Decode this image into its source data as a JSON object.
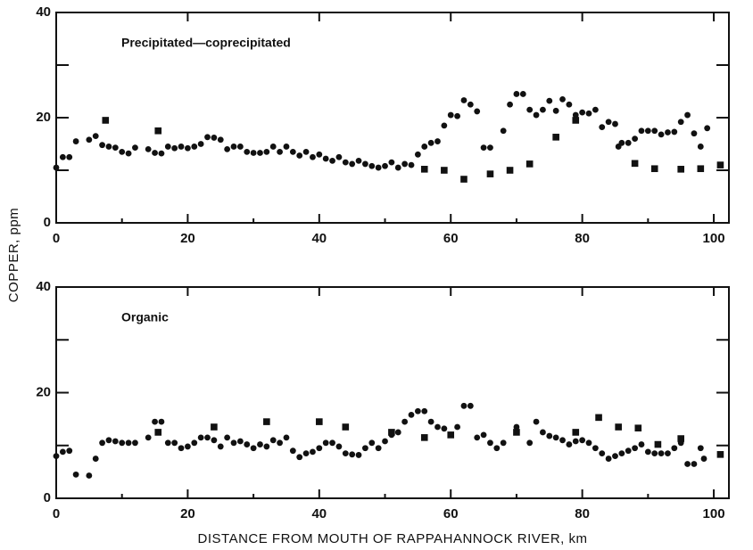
{
  "chart_data": [
    {
      "type": "scatter",
      "annotation": "Precipitated—coprecipitated",
      "ylabel": "COPPER, ppm",
      "xlim": [
        0,
        102.3
      ],
      "xticks": [
        0,
        20,
        40,
        60,
        80,
        100
      ],
      "xminor": [
        10,
        30,
        50,
        70,
        90
      ],
      "ylim": [
        0,
        40
      ],
      "yticks": [
        0,
        20,
        40
      ],
      "yminor": [
        10,
        30
      ],
      "series": [
        {
          "marker": "circle",
          "color": "#111",
          "x": [
            0,
            1,
            2,
            3,
            5,
            6,
            7,
            8,
            9,
            10,
            11,
            12,
            14,
            15,
            16,
            17,
            18,
            19,
            20,
            21,
            22,
            23,
            24,
            25,
            26,
            27,
            28,
            29,
            30,
            31,
            32,
            33,
            34,
            35,
            36,
            37,
            38,
            39,
            40,
            41,
            42,
            43,
            44,
            45,
            46,
            47,
            48,
            49,
            50,
            51,
            52,
            53,
            54,
            55,
            56,
            57,
            58,
            59,
            60,
            61,
            62,
            63,
            64,
            65,
            66,
            68,
            69,
            70,
            71,
            72,
            73,
            74,
            75,
            76,
            77,
            78,
            79,
            80,
            81,
            82,
            83,
            84,
            85,
            85.5,
            86,
            87,
            88,
            89,
            90,
            91,
            92,
            93,
            94,
            95,
            96,
            97,
            98,
            99
          ],
          "values": [
            10.5,
            12.5,
            12.5,
            15.5,
            15.8,
            16.5,
            14.8,
            14.5,
            14.3,
            13.5,
            13.2,
            14.3,
            14,
            13.3,
            13.2,
            14.5,
            14.2,
            14.5,
            14.2,
            14.5,
            15,
            16.3,
            16.2,
            15.8,
            14,
            14.5,
            14.5,
            13.5,
            13.3,
            13.3,
            13.5,
            14.5,
            13.5,
            14.5,
            13.5,
            12.8,
            13.5,
            12.5,
            13,
            12.2,
            11.8,
            12.5,
            11.5,
            11.2,
            11.8,
            11.2,
            10.8,
            10.5,
            10.8,
            11.5,
            10.5,
            11.2,
            11,
            13,
            14.5,
            15.2,
            15.5,
            18.5,
            20.5,
            20.3,
            23.3,
            22.5,
            21.2,
            14.3,
            14.3,
            17.5,
            22.5,
            24.5,
            24.5,
            21.5,
            20.5,
            21.5,
            23.2,
            21.3,
            23.5,
            22.5,
            20.5,
            21,
            20.8,
            21.5,
            18.2,
            19.2,
            18.8,
            14.5,
            15.2,
            15.2,
            16,
            17.5,
            17.5,
            17.5,
            16.8,
            17.2,
            17.3,
            19.2,
            20.5,
            17,
            14.5,
            18
          ]
        },
        {
          "marker": "square",
          "color": "#111",
          "x": [
            7.5,
            15.5,
            56,
            59,
            62,
            66,
            69,
            72,
            76,
            79,
            88,
            91,
            95,
            98,
            101
          ],
          "values": [
            19.5,
            17.5,
            10.2,
            10,
            8.3,
            9.3,
            10,
            11.2,
            16.3,
            19.5,
            11.3,
            10.3,
            10.2,
            10.3,
            11
          ]
        }
      ]
    },
    {
      "type": "scatter",
      "annotation": "Organic",
      "xlabel": "DISTANCE FROM MOUTH OF RAPPAHANNOCK RIVER, km",
      "xlim": [
        0,
        102.3
      ],
      "xticks": [
        0,
        20,
        40,
        60,
        80,
        100
      ],
      "xminor": [
        10,
        30,
        50,
        70,
        90
      ],
      "ylim": [
        0,
        40
      ],
      "yticks": [
        0,
        20,
        40
      ],
      "yminor": [
        10,
        30
      ],
      "series": [
        {
          "marker": "circle",
          "color": "#111",
          "x": [
            0,
            1,
            2,
            3,
            5,
            6,
            7,
            8,
            9,
            10,
            11,
            12,
            14,
            15,
            16,
            17,
            18,
            19,
            20,
            21,
            22,
            23,
            24,
            25,
            26,
            27,
            28,
            29,
            30,
            31,
            32,
            33,
            34,
            35,
            36,
            37,
            38,
            39,
            40,
            41,
            42,
            43,
            44,
            45,
            46,
            47,
            48,
            49,
            50,
            51,
            52,
            53,
            54,
            55,
            56,
            57,
            58,
            59,
            60,
            61,
            62,
            63,
            64,
            65,
            66,
            67,
            68,
            70,
            72,
            73,
            74,
            75,
            76,
            77,
            78,
            79,
            80,
            81,
            82,
            83,
            84,
            85,
            86,
            87,
            88,
            89,
            90,
            91,
            92,
            93,
            94,
            95,
            96,
            97,
            98,
            98.5
          ],
          "values": [
            8,
            8.8,
            9,
            4.5,
            4.3,
            7.5,
            10.5,
            11,
            10.8,
            10.5,
            10.5,
            10.5,
            11.5,
            14.5,
            14.5,
            10.5,
            10.5,
            9.5,
            9.8,
            10.5,
            11.5,
            11.5,
            11,
            9.8,
            11.5,
            10.5,
            10.8,
            10.2,
            9.5,
            10.2,
            9.8,
            11,
            10.5,
            11.5,
            9,
            7.8,
            8.5,
            8.8,
            9.5,
            10.5,
            10.5,
            9.8,
            8.5,
            8.3,
            8.2,
            9.5,
            10.5,
            9.5,
            10.8,
            12,
            12.5,
            14.5,
            15.8,
            16.5,
            16.5,
            14.5,
            13.5,
            13.2,
            12,
            13.5,
            17.5,
            17.5,
            11.5,
            12,
            10.5,
            9.5,
            10.5,
            13.5,
            10.5,
            14.5,
            12.5,
            11.8,
            11.5,
            11,
            10.2,
            10.8,
            11,
            10.5,
            9.5,
            8.5,
            7.5,
            8,
            8.5,
            9,
            9.5,
            10.2,
            8.8,
            8.5,
            8.5,
            8.5,
            9.5,
            10.5,
            6.5,
            6.5,
            9.5,
            7.5
          ]
        },
        {
          "marker": "square",
          "color": "#111",
          "x": [
            15.5,
            24,
            32,
            40,
            44,
            51,
            56,
            60,
            70,
            79,
            82.5,
            85.5,
            88.5,
            91.5,
            95,
            101
          ],
          "values": [
            12.5,
            13.5,
            14.5,
            14.5,
            13.5,
            12.5,
            11.5,
            12,
            12.5,
            12.5,
            15.3,
            13.5,
            13.3,
            10.2,
            11.3,
            8.3
          ]
        }
      ]
    }
  ]
}
